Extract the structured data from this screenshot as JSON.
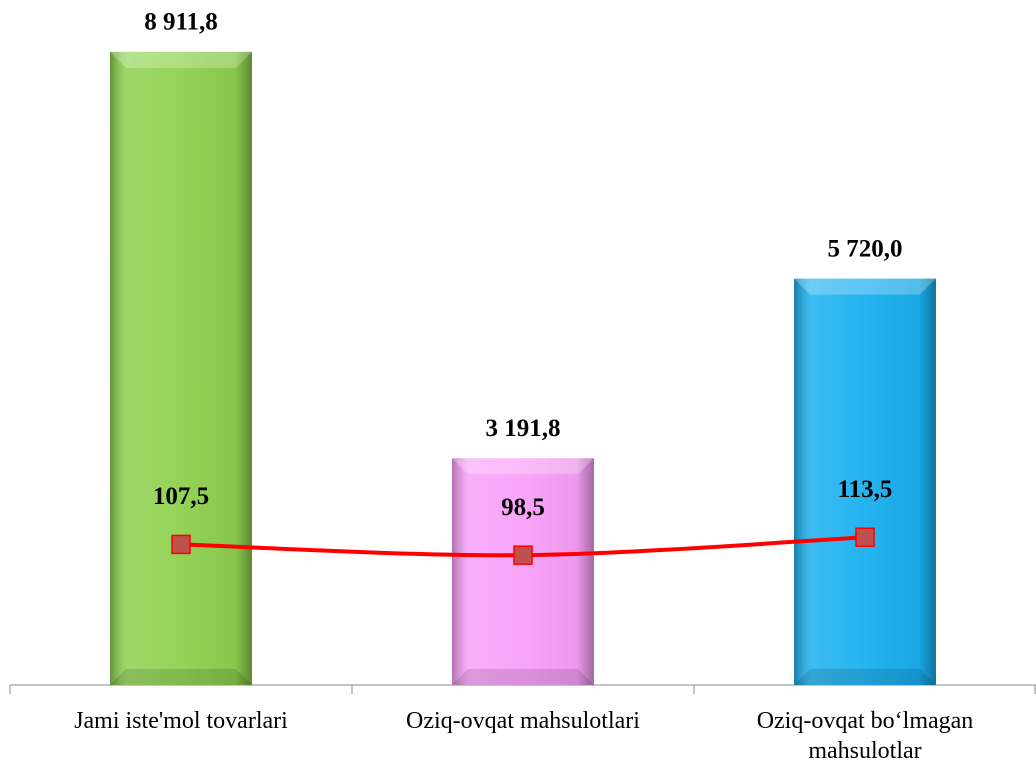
{
  "chart_data": {
    "type": "bar",
    "categories": [
      "Jami iste'mol tovarlari",
      "Oziq-ovqat mahsulotlari",
      "Oziq-ovqat bo‘lmagan mahsulotlar"
    ],
    "series": [
      {
        "type": "bar",
        "colors": [
          "#8fd14f",
          "#f9a0f9",
          "#1ab0ef"
        ],
        "values": [
          8911.8,
          3191.8,
          5720.0
        ],
        "value_labels": [
          "8 911,8",
          "3 191,8",
          "5 720,0"
        ]
      },
      {
        "type": "line",
        "axis": "y2",
        "color": "#ff0000",
        "marker_color": "#c0504d",
        "values": [
          107.5,
          98.5,
          113.5
        ],
        "value_labels": [
          "107,5",
          "98,5",
          "113,5"
        ]
      }
    ],
    "ylim": [
      0,
      9600
    ],
    "y2lim": [
      -10,
      560
    ]
  }
}
